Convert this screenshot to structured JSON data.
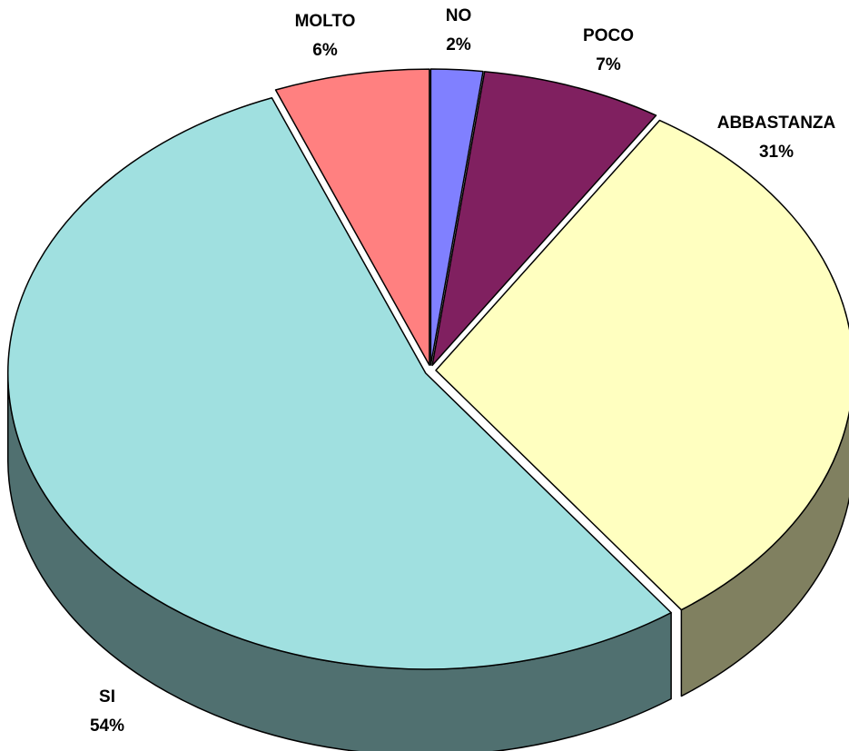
{
  "chart_data": {
    "type": "pie",
    "categories": [
      "NO",
      "POCO",
      "ABBASTANZA",
      "SI",
      "MOLTO"
    ],
    "values": [
      2,
      7,
      31,
      54,
      6
    ],
    "value_labels": [
      "2%",
      "7%",
      "31%",
      "54%",
      "6%"
    ],
    "colors": [
      "#8080ff",
      "#802060",
      "#ffffc0",
      "#a0e0e0",
      "#ff8080"
    ]
  }
}
